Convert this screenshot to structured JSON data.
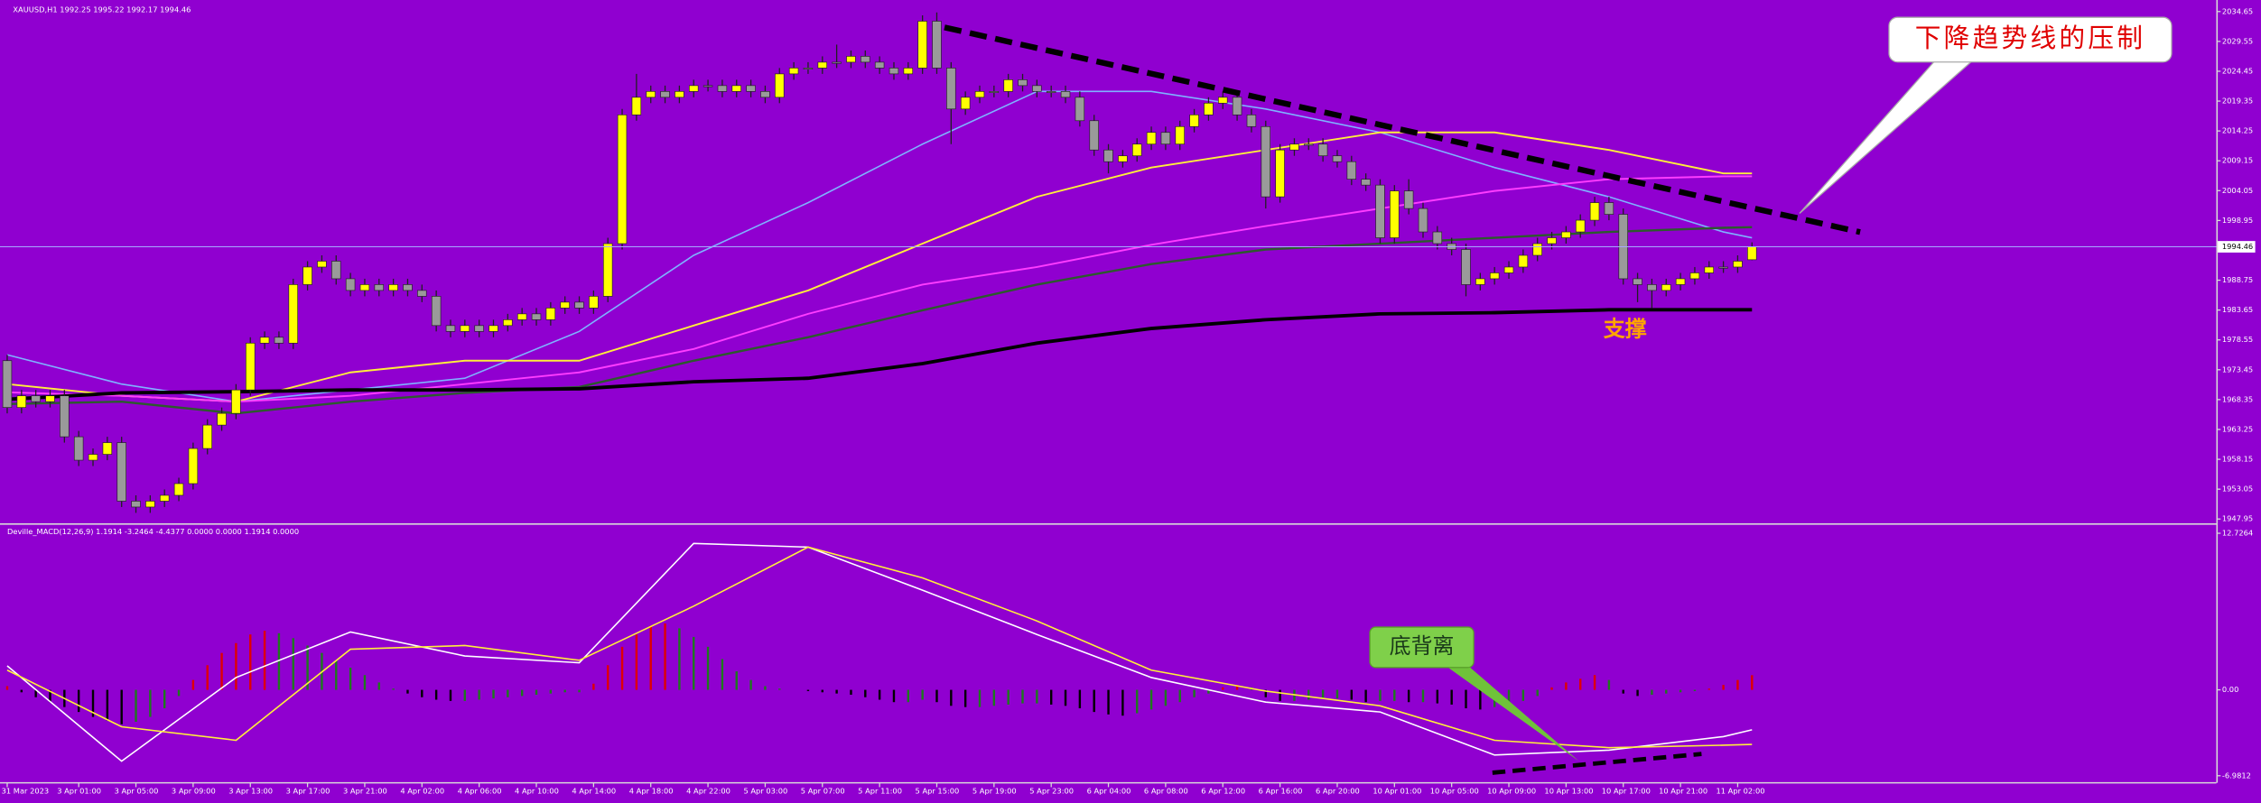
{
  "chart_data": [
    {
      "type": "candlestick",
      "title": "XAUUSD,H1  1992.25 1995.22 1992.17 1994.46",
      "up_color": "#ffff00",
      "down_color": "#9a9a9a",
      "wick_color": "#202020",
      "price_line_color": "#a8a8ff",
      "open": [
        1975,
        1967,
        1969,
        1968,
        1969,
        1962,
        1958,
        1959,
        1961,
        1951,
        1950,
        1951,
        1952,
        1954,
        1960,
        1964,
        1966,
        1970,
        1978,
        1979,
        1978,
        1988,
        1991,
        1992,
        1989,
        1987,
        1988,
        1987,
        1988,
        1987,
        1986,
        1981,
        1980,
        1981,
        1980,
        1981,
        1982,
        1983,
        1982,
        1984,
        1985,
        1984,
        1986,
        1995,
        2017,
        2020,
        2021,
        2020,
        2021,
        2022,
        2022,
        2021,
        2022,
        2021,
        2020,
        2024,
        2025,
        2025,
        2026,
        2026,
        2027,
        2026,
        2025,
        2024,
        2025,
        2033,
        2025,
        2018,
        2020,
        2021,
        2021,
        2023,
        2022,
        2021,
        2021,
        2020,
        2016,
        2011,
        2009,
        2010,
        2012,
        2014,
        2012,
        2015,
        2017,
        2019,
        2020,
        2017,
        2015,
        2003,
        2011,
        2012,
        2012,
        2010,
        2009,
        2006,
        2005,
        1996,
        2004,
        2001,
        1997,
        1995,
        1994,
        1988,
        1989,
        1990,
        1991,
        1993,
        1995,
        1996,
        1997,
        1999,
        2002,
        2000,
        1989,
        1988,
        1987,
        1988,
        1989,
        1990,
        1991,
        1991,
        1992.25
      ],
      "high": [
        1976,
        1970,
        1970,
        1970,
        1970,
        1963,
        1960,
        1962,
        1962,
        1952,
        1952,
        1953,
        1955,
        1961,
        1965,
        1967,
        1971,
        1979,
        1980,
        1980,
        1989,
        1992,
        1993,
        1993,
        1990,
        1989,
        1989,
        1989,
        1989,
        1988,
        1987,
        1982,
        1982,
        1982,
        1982,
        1983,
        1984,
        1984,
        1985,
        1986,
        1986,
        1987,
        1996,
        2018,
        2024,
        2022,
        2022,
        2022,
        2023,
        2023,
        2023,
        2023,
        2023,
        2022,
        2025,
        2026,
        2026,
        2027,
        2029,
        2028,
        2028,
        2027,
        2026,
        2026,
        2034,
        2034.5,
        2026,
        2021,
        2022,
        2022,
        2024,
        2024,
        2023,
        2022,
        2022,
        2021,
        2017,
        2012,
        2011,
        2013,
        2015,
        2015,
        2016,
        2018,
        2020,
        2021,
        2021,
        2018,
        2016,
        2012,
        2013,
        2013,
        2013,
        2011,
        2010,
        2007,
        2006,
        2005,
        2006,
        2002,
        1998,
        1996,
        1995,
        1990,
        1991,
        1992,
        1994,
        1996,
        1997,
        1998,
        2000,
        2003,
        2003,
        2001,
        1990,
        1989,
        1989,
        1990,
        1991,
        1992,
        1992,
        1993,
        1995.22
      ],
      "low": [
        1966,
        1966,
        1967,
        1967,
        1961,
        1957,
        1957,
        1958,
        1950,
        1949,
        1949,
        1950,
        1951,
        1953,
        1959,
        1963,
        1965,
        1969,
        1977,
        1977,
        1977,
        1987,
        1990,
        1988,
        1986,
        1986,
        1986,
        1986,
        1986,
        1985,
        1980,
        1979,
        1979,
        1979,
        1979,
        1980,
        1981,
        1981,
        1981,
        1983,
        1983,
        1983,
        1985,
        1994,
        2016,
        2019,
        2019,
        2019,
        2020,
        2021,
        2020,
        2020,
        2020,
        2019,
        2019,
        2023,
        2024,
        2024,
        2025,
        2025,
        2025,
        2024,
        2023,
        2023,
        2024,
        2024,
        2012,
        2017,
        2019,
        2020,
        2020,
        2021,
        2020,
        2020,
        2019,
        2015,
        2010,
        2007,
        2008,
        2009,
        2011,
        2011,
        2011,
        2014,
        2016,
        2018,
        2016,
        2014,
        2001,
        2002,
        2010,
        2011,
        2009,
        2008,
        2005,
        2004,
        1995,
        1995,
        2000,
        1996,
        1994,
        1993,
        1986,
        1987,
        1988,
        1989,
        1990,
        1992,
        1994,
        1995,
        1996,
        1998,
        1999,
        1988,
        1985,
        1984,
        1986,
        1987,
        1988,
        1989,
        1990,
        1990,
        1992.17
      ],
      "close": [
        1967,
        1969,
        1968,
        1969,
        1962,
        1958,
        1959,
        1961,
        1951,
        1950,
        1951,
        1952,
        1954,
        1960,
        1964,
        1966,
        1970,
        1978,
        1979,
        1978,
        1988,
        1991,
        1992,
        1989,
        1987,
        1988,
        1987,
        1988,
        1987,
        1986,
        1981,
        1980,
        1981,
        1980,
        1981,
        1982,
        1983,
        1982,
        1984,
        1985,
        1984,
        1986,
        1995,
        2017,
        2020,
        2021,
        2020,
        2021,
        2022,
        2022,
        2021,
        2022,
        2021,
        2020,
        2024,
        2025,
        2025,
        2026,
        2026,
        2027,
        2026,
        2025,
        2024,
        2025,
        2033,
        2025,
        2018,
        2020,
        2021,
        2021,
        2023,
        2022,
        2021,
        2021,
        2020,
        2016,
        2011,
        2009,
        2010,
        2012,
        2014,
        2012,
        2015,
        2017,
        2019,
        2020,
        2017,
        2015,
        2003,
        2011,
        2012,
        2012,
        2010,
        2009,
        2006,
        2005,
        1996,
        2004,
        2001,
        1997,
        1995,
        1994,
        1988,
        1989,
        1990,
        1991,
        1993,
        1995,
        1996,
        1997,
        1999,
        2002,
        2000,
        1989,
        1988,
        1987,
        1988,
        1989,
        1990,
        1991,
        1991,
        1992,
        1994.46
      ],
      "series": [
        {
          "color": "#7fb2ff",
          "width": 1,
          "x": [
            0,
            8,
            16,
            24,
            32,
            40,
            48,
            56,
            64,
            72,
            80,
            88,
            96,
            104,
            112,
            120,
            122
          ],
          "values": [
            1976,
            1971,
            1968,
            1970,
            1972,
            1980,
            1993,
            2002,
            2012,
            2021,
            2021,
            2018,
            2014,
            2008,
            2003,
            1997,
            1996
          ]
        },
        {
          "color": "#ffef3a",
          "width": 1.2,
          "x": [
            0,
            8,
            16,
            24,
            32,
            40,
            48,
            56,
            64,
            72,
            80,
            88,
            96,
            104,
            112,
            120,
            122
          ],
          "values": [
            1971,
            1969,
            1968,
            1973,
            1975,
            1975,
            1981,
            1987,
            1995,
            2003,
            2008,
            2011,
            2014,
            2014,
            2011,
            2007,
            2007
          ]
        },
        {
          "color": "#ff3cff",
          "width": 1.2,
          "x": [
            0,
            8,
            16,
            24,
            32,
            40,
            48,
            56,
            64,
            72,
            80,
            88,
            96,
            104,
            112,
            120,
            122
          ],
          "values": [
            1969.6,
            1969,
            1968,
            1969,
            1971,
            1973,
            1977,
            1983,
            1988,
            1991,
            1994.8,
            1998,
            2001,
            2004,
            2006,
            2006.5,
            2006.5
          ]
        },
        {
          "color": "#2d5a2d",
          "width": 1.5,
          "x": [
            0,
            8,
            16,
            24,
            32,
            40,
            48,
            56,
            64,
            72,
            80,
            88,
            96,
            104,
            112,
            120,
            122
          ],
          "values": [
            1967.6,
            1968,
            1966,
            1968,
            1969.5,
            1970.5,
            1975,
            1979,
            1983.6,
            1988,
            1991.5,
            1994,
            1995,
            1996,
            1997,
            1997.7,
            1997.8
          ]
        },
        {
          "color": "#000000",
          "width": 2.4,
          "x": [
            0,
            8,
            16,
            24,
            32,
            40,
            48,
            56,
            64,
            72,
            80,
            88,
            96,
            104,
            112,
            120,
            122
          ],
          "values": [
            1968.4,
            1969.5,
            1969.7,
            1970,
            1970,
            1970.2,
            1971.4,
            1972,
            1974.5,
            1978,
            1980.5,
            1982,
            1983,
            1983.2,
            1983.7,
            1983.7,
            1983.7
          ]
        }
      ],
      "ylim": [
        1947.46,
        2036.13
      ],
      "yticks": [
        2034.65,
        2029.55,
        2024.45,
        2019.35,
        2014.25,
        2009.15,
        2004.05,
        1998.95,
        1988.75,
        1983.65,
        1978.55,
        1973.45,
        1968.35,
        1963.25,
        1958.15,
        1953.05,
        1947.95
      ],
      "xlim": [
        0,
        122
      ],
      "xticks": [
        {
          "value": 0,
          "label": "31 Mar 2023"
        },
        {
          "value": 5,
          "label": "3 Apr 01:00"
        },
        {
          "value": 9,
          "label": "3 Apr 05:00"
        },
        {
          "value": 13,
          "label": "3 Apr 09:00"
        },
        {
          "value": 17,
          "label": "3 Apr 13:00"
        },
        {
          "value": 21,
          "label": "3 Apr 17:00"
        },
        {
          "value": 25,
          "label": "3 Apr 21:00"
        },
        {
          "value": 29,
          "label": "4 Apr 02:00"
        },
        {
          "value": 33,
          "label": "4 Apr 06:00"
        },
        {
          "value": 37,
          "label": "4 Apr 10:00"
        },
        {
          "value": 41,
          "label": "4 Apr 14:00"
        },
        {
          "value": 45,
          "label": "4 Apr 18:00"
        },
        {
          "value": 49,
          "label": "4 Apr 22:00"
        },
        {
          "value": 53,
          "label": "5 Apr 03:00"
        },
        {
          "value": 57,
          "label": "5 Apr 07:00"
        },
        {
          "value": 61,
          "label": "5 Apr 11:00"
        },
        {
          "value": 65,
          "label": "5 Apr 15:00"
        },
        {
          "value": 69,
          "label": "5 Apr 19:00"
        },
        {
          "value": 73,
          "label": "5 Apr 23:00"
        },
        {
          "value": 77,
          "label": "6 Apr 04:00"
        },
        {
          "value": 81,
          "label": "6 Apr 08:00"
        },
        {
          "value": 85,
          "label": "6 Apr 12:00"
        },
        {
          "value": 89,
          "label": "6 Apr 16:00"
        },
        {
          "value": 93,
          "label": "6 Apr 20:00"
        },
        {
          "value": 97,
          "label": "10 Apr 01:00"
        },
        {
          "value": 101,
          "label": "10 Apr 05:00"
        },
        {
          "value": 105,
          "label": "10 Apr 09:00"
        },
        {
          "value": 109,
          "label": "10 Apr 13:00"
        },
        {
          "value": 113,
          "label": "10 Apr 17:00"
        },
        {
          "value": 117,
          "label": "10 Apr 21:00"
        },
        {
          "value": 121,
          "label": "11 Apr 02:00"
        }
      ],
      "annotations": [
        "下降趋势线的压制",
        "支撑"
      ]
    },
    {
      "type": "macd",
      "title": "Deville_MACD(12,26,9) 1.1914 -3.2464 -4.4377 0.0000 0.0000 1.1914 0.0000",
      "up_color": "#e00000",
      "down_color": "#1e7a1e",
      "negative_color": "#000000",
      "histogram": [
        0.3,
        -0.2,
        -0.6,
        -1.0,
        -1.4,
        -1.8,
        -2.2,
        -2.5,
        -2.8,
        -2.6,
        -2.2,
        -1.5,
        -0.5,
        0.8,
        2.0,
        3.0,
        3.8,
        4.5,
        4.8,
        4.6,
        4.2,
        3.6,
        3.0,
        2.4,
        1.8,
        1.2,
        0.6,
        0.1,
        -0.3,
        -0.6,
        -0.8,
        -0.9,
        -0.9,
        -0.8,
        -0.7,
        -0.6,
        -0.5,
        -0.4,
        -0.3,
        -0.2,
        -0.2,
        0.5,
        2.0,
        3.5,
        4.5,
        5.2,
        5.4,
        5.0,
        4.3,
        3.5,
        2.5,
        1.5,
        0.8,
        0.3,
        0.1,
        0.0,
        -0.1,
        -0.2,
        -0.3,
        -0.4,
        -0.6,
        -0.8,
        -1.0,
        -1.0,
        -0.8,
        -1.0,
        -1.3,
        -1.4,
        -1.4,
        -1.3,
        -1.2,
        -1.1,
        -1.1,
        -1.2,
        -1.3,
        -1.5,
        -1.8,
        -2.0,
        -2.1,
        -1.9,
        -1.6,
        -1.3,
        -1.0,
        -0.6,
        -0.3,
        0.2,
        0.4,
        0.2,
        -0.6,
        -0.9,
        -0.9,
        -0.8,
        -0.7,
        -0.7,
        -0.8,
        -1.0,
        -0.9,
        -0.9,
        -1.0,
        -1.0,
        -1.1,
        -1.2,
        -1.5,
        -1.6,
        -1.4,
        -1.2,
        -0.9,
        -0.5,
        0.2,
        0.6,
        0.9,
        1.2,
        0.8,
        -0.3,
        -0.5,
        -0.4,
        -0.3,
        -0.2,
        -0.1,
        0.1,
        0.4,
        0.8,
        1.1914
      ],
      "series": [
        {
          "color": "#ffffff",
          "width": 1,
          "x": [
            0,
            8,
            16,
            24,
            32,
            40,
            48,
            56,
            64,
            72,
            80,
            88,
            96,
            104,
            112,
            120,
            122
          ],
          "values": [
            1.95,
            -5.8,
            1.0,
            4.7,
            2.75,
            2.2,
            11.9,
            11.6,
            8.1,
            4.5,
            1.0,
            -1.0,
            -1.8,
            -5.3,
            -4.9,
            -3.8,
            -3.2464
          ]
        },
        {
          "color": "#ffef3a",
          "width": 1,
          "x": [
            0,
            8,
            16,
            24,
            32,
            40,
            48,
            56,
            64,
            72,
            80,
            88,
            96,
            104,
            112,
            120,
            122
          ],
          "values": [
            1.6,
            -3.0,
            -4.1,
            3.3,
            3.6,
            2.4,
            6.8,
            11.6,
            9.1,
            5.6,
            1.6,
            -0.1,
            -1.3,
            -4.1,
            -4.7,
            -4.5,
            -4.4377
          ]
        }
      ],
      "ylim": [
        -7.44,
        13.3
      ],
      "yticks": [
        12.7264,
        {
          "value": 0,
          "label": "0.00"
        },
        -6.9812
      ],
      "annotations": [
        "底背离"
      ]
    }
  ]
}
